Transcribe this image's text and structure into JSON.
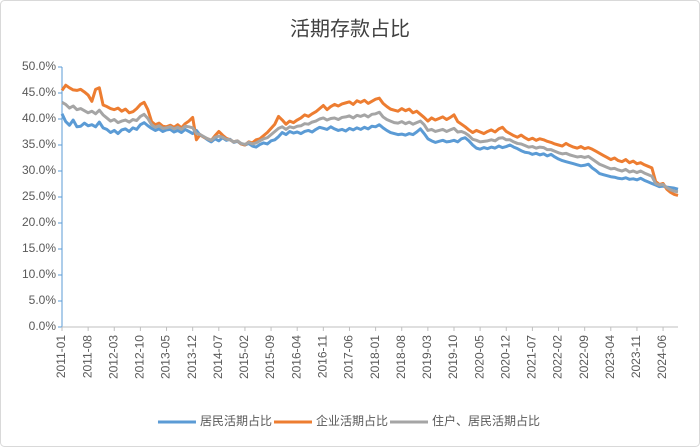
{
  "chart_data": {
    "type": "line",
    "title": "活期存款占比",
    "categories": [
      "2011-01",
      null,
      null,
      null,
      null,
      null,
      null,
      "2011-08",
      null,
      null,
      null,
      null,
      null,
      null,
      "2012-03",
      null,
      null,
      null,
      null,
      null,
      null,
      "2012-10",
      null,
      null,
      null,
      null,
      null,
      null,
      "2013-05",
      null,
      null,
      null,
      null,
      null,
      null,
      "2013-12",
      null,
      null,
      null,
      null,
      null,
      null,
      "2014-07",
      null,
      null,
      null,
      null,
      null,
      null,
      "2015-02",
      null,
      null,
      null,
      null,
      null,
      null,
      "2015-09",
      null,
      null,
      null,
      null,
      null,
      null,
      "2016-04",
      null,
      null,
      null,
      null,
      null,
      null,
      "2016-11",
      null,
      null,
      null,
      null,
      null,
      null,
      "2017-06",
      null,
      null,
      null,
      null,
      null,
      null,
      "2018-01",
      null,
      null,
      null,
      null,
      null,
      null,
      "2018-08",
      null,
      null,
      null,
      null,
      null,
      null,
      "2019-03",
      null,
      null,
      null,
      null,
      null,
      null,
      "2019-10",
      null,
      null,
      null,
      null,
      null,
      null,
      "2020-05",
      null,
      null,
      null,
      null,
      null,
      null,
      "2020-12",
      null,
      null,
      null,
      null,
      null,
      null,
      "2021-07",
      null,
      null,
      null,
      null,
      null,
      null,
      "2022-02",
      null,
      null,
      null,
      null,
      null,
      null,
      "2022-09",
      null,
      null,
      null,
      null,
      null,
      null,
      "2023-04",
      null,
      null,
      null,
      null,
      null,
      null,
      "2023-11",
      null,
      null,
      null,
      null,
      null,
      null,
      "2024-06",
      null,
      null,
      null,
      null
    ],
    "series": [
      {
        "name": "居民活期占比",
        "color": "#5b9bd5",
        "values": [
          41.0,
          39.5,
          38.8,
          39.8,
          38.5,
          38.6,
          39.2,
          38.7,
          38.9,
          38.5,
          39.4,
          38.3,
          38.0,
          37.4,
          37.8,
          37.2,
          37.9,
          38.1,
          37.6,
          38.3,
          38.0,
          38.9,
          39.3,
          38.7,
          38.2,
          37.8,
          38.1,
          37.6,
          37.9,
          38.0,
          37.5,
          37.8,
          37.4,
          38.0,
          37.6,
          37.2,
          37.8,
          36.9,
          36.5,
          36.0,
          35.6,
          36.2,
          35.8,
          36.4,
          35.9,
          36.1,
          35.5,
          35.7,
          35.2,
          35.0,
          35.3,
          34.8,
          34.6,
          35.1,
          35.4,
          35.2,
          35.8,
          36.0,
          36.6,
          37.4,
          37.0,
          37.6,
          37.3,
          37.5,
          37.2,
          37.6,
          37.8,
          37.5,
          38.0,
          38.4,
          38.2,
          38.0,
          38.5,
          38.1,
          37.8,
          38.0,
          37.7,
          38.2,
          37.9,
          38.3,
          38.0,
          38.4,
          38.1,
          38.6,
          38.5,
          38.9,
          38.3,
          37.8,
          37.4,
          37.2,
          37.0,
          37.1,
          36.9,
          37.2,
          37.0,
          37.5,
          38.1,
          37.2,
          36.2,
          35.8,
          35.5,
          35.7,
          35.9,
          35.6,
          35.7,
          35.9,
          35.6,
          36.2,
          36.4,
          35.8,
          35.0,
          34.4,
          34.2,
          34.5,
          34.3,
          34.6,
          34.4,
          34.8,
          34.5,
          34.7,
          35.0,
          34.6,
          34.3,
          33.9,
          33.6,
          33.5,
          33.2,
          33.4,
          33.1,
          33.3,
          32.9,
          33.2,
          32.7,
          32.3,
          32.0,
          31.8,
          31.6,
          31.4,
          31.2,
          31.0,
          31.1,
          31.3,
          30.6,
          30.1,
          29.5,
          29.3,
          29.1,
          28.9,
          28.8,
          28.6,
          28.5,
          28.7,
          28.4,
          28.5,
          28.3,
          28.6,
          28.2,
          27.9,
          27.6,
          27.3,
          27.0,
          27.1,
          26.9,
          26.8,
          26.7,
          26.5
        ]
      },
      {
        "name": "企业活期占比",
        "color": "#ed7d31",
        "values": [
          45.5,
          46.5,
          46.0,
          45.6,
          45.5,
          45.7,
          45.2,
          44.6,
          43.4,
          45.7,
          46.0,
          42.7,
          42.4,
          42.0,
          41.8,
          42.1,
          41.5,
          41.9,
          41.2,
          41.4,
          42.0,
          42.8,
          43.2,
          41.8,
          39.5,
          38.9,
          39.2,
          38.6,
          38.5,
          38.8,
          38.4,
          38.9,
          38.3,
          39.1,
          39.6,
          40.3,
          36.0,
          37.0,
          36.5,
          36.2,
          35.9,
          36.8,
          37.6,
          36.9,
          36.3,
          36.0,
          35.6,
          35.8,
          35.2,
          35.0,
          35.6,
          35.4,
          36.0,
          36.2,
          36.8,
          37.4,
          38.2,
          39.0,
          40.5,
          39.8,
          39.0,
          39.6,
          39.3,
          39.8,
          40.2,
          40.8,
          40.5,
          41.0,
          41.4,
          42.0,
          42.6,
          41.8,
          42.4,
          42.8,
          42.5,
          42.9,
          43.1,
          43.3,
          42.8,
          43.5,
          43.2,
          43.6,
          43.0,
          43.4,
          43.8,
          44.0,
          43.0,
          42.4,
          41.9,
          41.7,
          41.5,
          42.0,
          41.6,
          41.9,
          41.2,
          41.5,
          40.9,
          40.3,
          39.6,
          40.2,
          39.8,
          40.1,
          40.4,
          39.9,
          40.3,
          40.8,
          39.5,
          39.0,
          38.5,
          37.9,
          37.4,
          37.8,
          37.5,
          37.2,
          37.6,
          37.9,
          37.5,
          38.1,
          38.4,
          37.6,
          37.2,
          36.8,
          36.5,
          36.9,
          36.4,
          36.0,
          36.3,
          35.9,
          36.2,
          36.0,
          35.7,
          35.5,
          35.2,
          35.0,
          34.8,
          35.3,
          34.9,
          34.6,
          34.4,
          34.7,
          34.3,
          34.5,
          34.2,
          33.8,
          33.4,
          33.0,
          32.6,
          32.2,
          32.5,
          32.0,
          31.8,
          32.2,
          31.6,
          31.9,
          31.4,
          31.6,
          31.2,
          30.9,
          30.6,
          28.0,
          27.4,
          27.6,
          26.5,
          25.9,
          25.5,
          25.3
        ]
      },
      {
        "name": "住户、居民活期占比",
        "color": "#a5a5a5",
        "values": [
          43.2,
          42.8,
          42.1,
          42.5,
          41.8,
          42.0,
          41.6,
          41.2,
          41.5,
          41.0,
          41.7,
          40.8,
          40.2,
          39.6,
          39.9,
          39.3,
          39.6,
          39.8,
          39.4,
          39.9,
          39.7,
          40.5,
          40.9,
          40.1,
          38.9,
          38.4,
          38.7,
          38.2,
          38.3,
          38.5,
          38.1,
          38.4,
          38.0,
          38.6,
          38.5,
          38.3,
          37.2,
          37.0,
          36.6,
          36.2,
          35.9,
          36.5,
          36.7,
          36.5,
          36.1,
          36.0,
          35.6,
          35.8,
          35.3,
          35.1,
          35.5,
          35.2,
          35.4,
          35.8,
          36.2,
          36.4,
          37.0,
          37.6,
          38.2,
          38.5,
          38.0,
          38.5,
          38.3,
          38.6,
          38.7,
          39.1,
          39.0,
          39.4,
          39.6,
          40.0,
          40.2,
          39.8,
          40.1,
          40.2,
          39.9,
          40.3,
          40.4,
          40.6,
          40.2,
          40.7,
          40.5,
          40.8,
          40.4,
          40.9,
          41.0,
          41.3,
          40.4,
          39.9,
          39.6,
          39.3,
          39.2,
          39.5,
          39.1,
          39.4,
          39.0,
          39.3,
          39.6,
          38.9,
          37.8,
          38.0,
          37.6,
          37.8,
          38.0,
          37.6,
          37.9,
          38.2,
          37.5,
          37.6,
          37.3,
          36.8,
          36.1,
          35.9,
          35.6,
          35.7,
          35.8,
          36.0,
          35.8,
          36.3,
          36.4,
          36.0,
          36.0,
          35.6,
          35.3,
          35.2,
          34.9,
          34.6,
          34.7,
          34.4,
          34.6,
          34.5,
          34.1,
          34.1,
          33.8,
          33.5,
          33.3,
          33.4,
          33.1,
          32.9,
          32.7,
          32.8,
          32.6,
          32.8,
          32.3,
          31.8,
          31.3,
          31.0,
          30.7,
          30.4,
          30.5,
          30.2,
          30.0,
          30.3,
          29.8,
          30.0,
          29.7,
          30.0,
          29.6,
          29.3,
          29.0,
          27.6,
          27.3,
          27.4,
          26.8,
          26.4,
          26.1,
          26.0
        ]
      }
    ],
    "ylim": [
      0,
      50
    ],
    "yticks": [
      {
        "value": 0,
        "label": "0.0%"
      },
      {
        "value": 5,
        "label": "5.0%"
      },
      {
        "value": 10,
        "label": "10.0%"
      },
      {
        "value": 15,
        "label": "15.0%"
      },
      {
        "value": 20,
        "label": "20.0%"
      },
      {
        "value": 25,
        "label": "25.0%"
      },
      {
        "value": 30,
        "label": "30.0%"
      },
      {
        "value": 35,
        "label": "35.0%"
      },
      {
        "value": 40,
        "label": "40.0%"
      },
      {
        "value": 45,
        "label": "45.0%"
      },
      {
        "value": 50,
        "label": "50.0%"
      }
    ],
    "legend": "bottom"
  }
}
